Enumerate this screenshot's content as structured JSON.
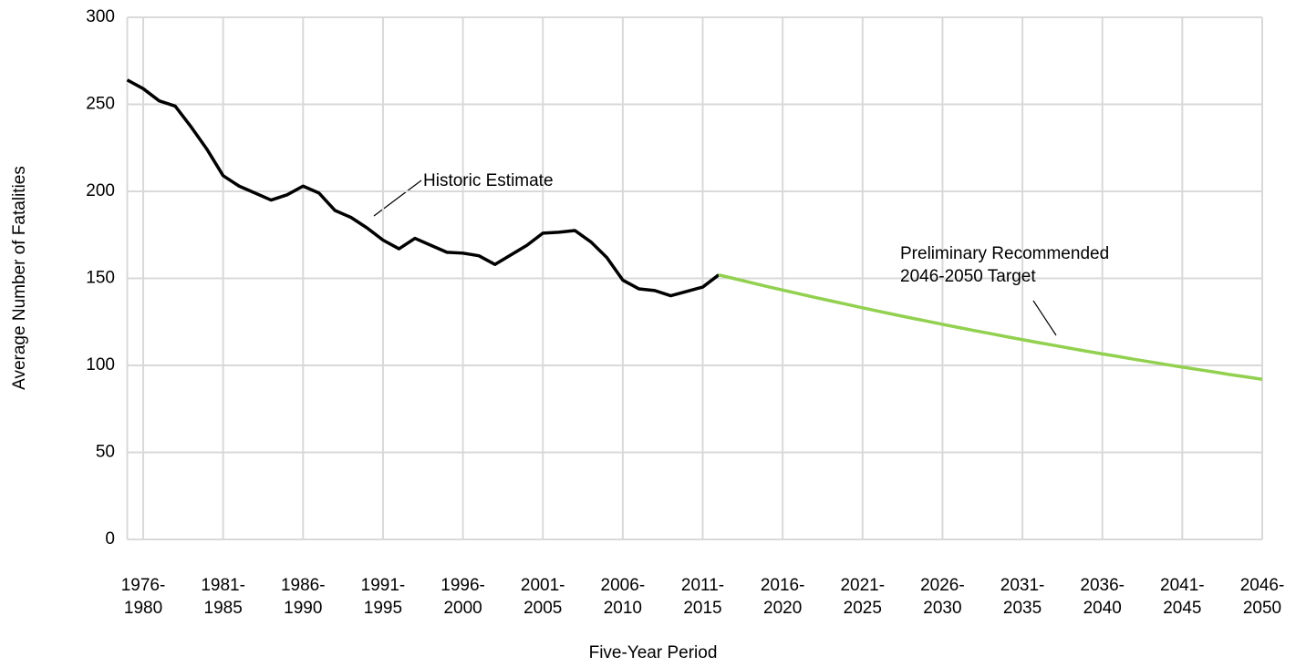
{
  "chart_data": {
    "type": "line",
    "y_label": "Average Number of Fatalities",
    "x_label": "Five-Year Period",
    "categories": [
      null,
      "1976-\n1980",
      null,
      null,
      null,
      null,
      "1981-\n1985",
      null,
      null,
      null,
      null,
      "1986-\n1990",
      null,
      null,
      null,
      null,
      "1991-\n1995",
      null,
      null,
      null,
      null,
      "1996-\n2000",
      null,
      null,
      null,
      null,
      "2001-\n2005",
      null,
      null,
      null,
      null,
      "2006-\n2010",
      null,
      null,
      null,
      null,
      "2011-\n2015",
      null,
      null,
      null,
      null,
      "2016-\n2020",
      null,
      null,
      null,
      null,
      "2021-\n2025",
      null,
      null,
      null,
      null,
      "2026-\n2030",
      null,
      null,
      null,
      null,
      "2031-\n2035",
      null,
      null,
      null,
      null,
      "2036-\n2040",
      null,
      null,
      null,
      null,
      "2041-\n2045",
      null,
      null,
      null,
      null,
      "2046-\n2050"
    ],
    "series": [
      {
        "name": "Historic Estimate",
        "color": "#000000",
        "values": [
          264,
          259,
          252,
          249,
          237,
          224,
          209,
          203,
          199,
          195,
          198,
          203,
          199,
          189,
          185,
          179,
          172,
          167,
          173,
          169,
          165,
          164.5,
          163,
          158,
          163.5,
          169,
          176,
          176.5,
          177.5,
          171,
          162,
          149,
          144,
          143,
          140,
          142.5,
          145,
          152,
          null,
          null,
          null,
          null,
          null,
          null,
          null,
          null,
          null,
          null,
          null,
          null,
          null,
          null,
          null,
          null,
          null,
          null,
          null,
          null,
          null,
          null,
          null,
          null,
          null,
          null,
          null,
          null,
          null,
          null,
          null,
          null,
          null,
          null
        ]
      },
      {
        "name": "Preliminary Recommended\n2046-2050 Target",
        "color": "#92d050",
        "values": [
          null,
          null,
          null,
          null,
          null,
          null,
          null,
          null,
          null,
          null,
          null,
          null,
          null,
          null,
          null,
          null,
          null,
          null,
          null,
          null,
          null,
          null,
          null,
          null,
          null,
          null,
          null,
          null,
          null,
          null,
          null,
          null,
          null,
          null,
          null,
          null,
          null,
          152,
          149.8,
          147.6,
          145.4,
          143.3,
          141.2,
          139.1,
          137.1,
          135.1,
          133.1,
          131.1,
          129.2,
          127.3,
          125.5,
          123.6,
          121.8,
          120.0,
          118.3,
          116.5,
          114.8,
          113.1,
          111.5,
          109.8,
          108.2,
          106.6,
          105.1,
          103.5,
          102.0,
          100.5,
          99.0,
          97.6,
          96.2,
          94.7,
          93.4,
          92
        ]
      }
    ],
    "ylim": [
      0,
      300
    ],
    "yticks": [
      0,
      50,
      100,
      150,
      200,
      250,
      300
    ],
    "grid": true
  }
}
